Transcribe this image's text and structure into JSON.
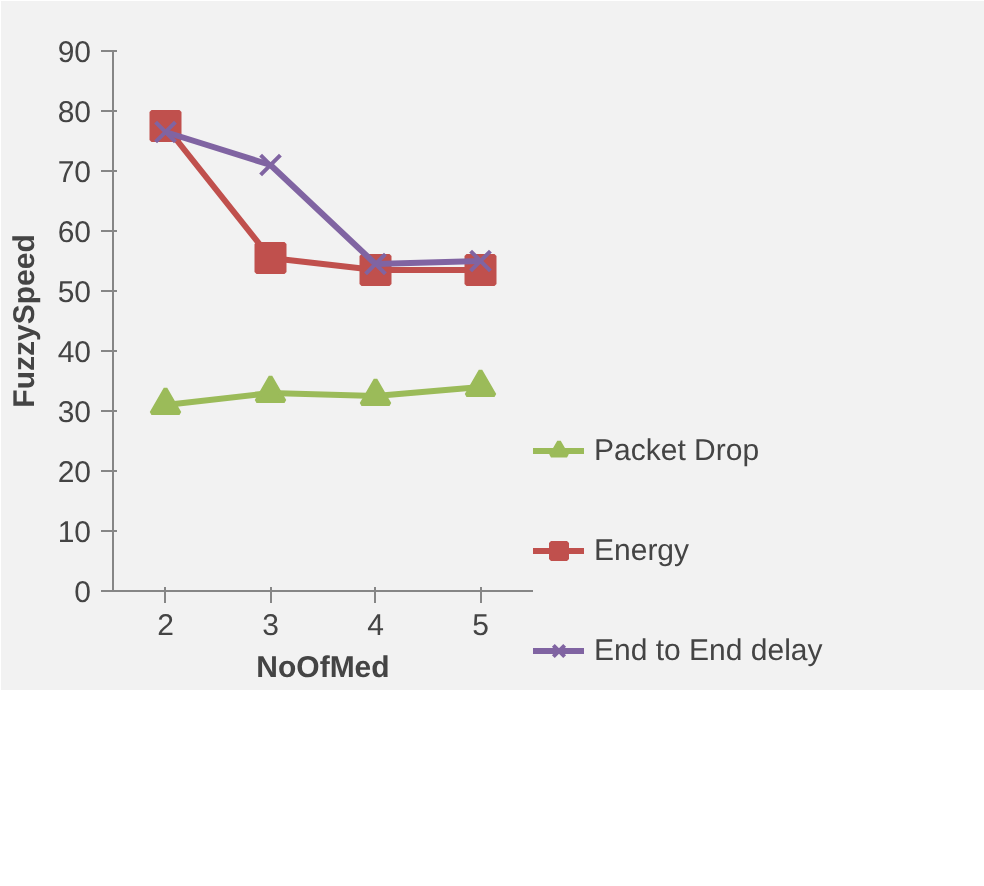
{
  "chart_data": {
    "type": "line",
    "xlabel": "NoOfMed",
    "ylabel": "FuzzySpeed",
    "categories": [
      "2",
      "3",
      "4",
      "5"
    ],
    "series": [
      {
        "name": "Packet Drop",
        "color": "#9bbb59",
        "marker": "triangle",
        "values": [
          31,
          33,
          32.5,
          34
        ]
      },
      {
        "name": "Energy",
        "color": "#c0504d",
        "marker": "square",
        "values": [
          77.5,
          55.5,
          53.5,
          53.5
        ]
      },
      {
        "name": "End to End delay",
        "color": "#8064a2",
        "marker": "cross",
        "values": [
          76.5,
          71,
          54.5,
          55
        ]
      }
    ],
    "ylim": [
      0,
      90
    ],
    "yticks": [
      0,
      10,
      20,
      30,
      40,
      50,
      60,
      70,
      80,
      90
    ],
    "grid": false,
    "legend": "right"
  }
}
